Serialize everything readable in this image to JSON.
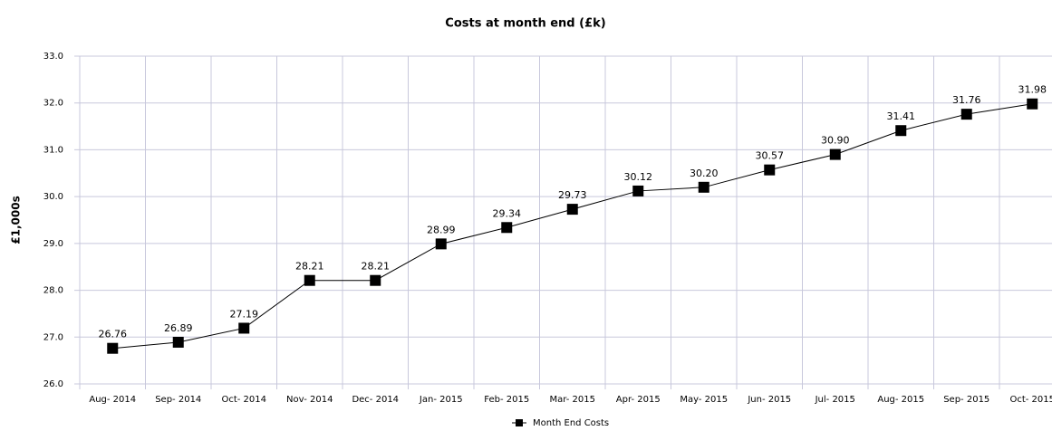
{
  "chart_data": {
    "type": "line",
    "title": "Costs at month end (£k)",
    "y_label": "£1,000s",
    "categories": [
      "Aug- 2014",
      "Sep- 2014",
      "Oct- 2014",
      "Nov- 2014",
      "Dec- 2014",
      "Jan- 2015",
      "Feb- 2015",
      "Mar- 2015",
      "Apr- 2015",
      "May- 2015",
      "Jun- 2015",
      "Jul- 2015",
      "Aug- 2015",
      "Sep- 2015",
      "Oct- 2015"
    ],
    "series": [
      {
        "name": "Month End Costs",
        "color": "#000000",
        "values": [
          26.76,
          26.89,
          27.19,
          28.21,
          28.21,
          28.99,
          29.34,
          29.73,
          30.12,
          30.2,
          30.57,
          30.9,
          31.41,
          31.76,
          31.98
        ],
        "value_labels": [
          "26.76",
          "26.89",
          "27.19",
          "28.21",
          "28.21",
          "28.99",
          "29.34",
          "29.73",
          "30.12",
          "30.20",
          "30.57",
          "30.90",
          "31.41",
          "31.76",
          "31.98"
        ]
      }
    ],
    "ylim": [
      26,
      33
    ],
    "yticks": [
      {
        "value": 26,
        "label": "26.0"
      },
      {
        "value": 27,
        "label": "27.0"
      },
      {
        "value": 28,
        "label": "28.0"
      },
      {
        "value": 29,
        "label": "29.0"
      },
      {
        "value": 30,
        "label": "30.0"
      },
      {
        "value": 31,
        "label": "31.0"
      },
      {
        "value": 32,
        "label": "32.0"
      },
      {
        "value": 33,
        "label": "33.0"
      }
    ],
    "grid": true,
    "legend": "bottom"
  }
}
